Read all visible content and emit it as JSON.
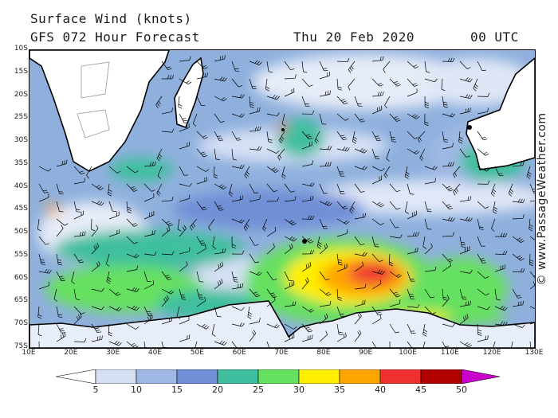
{
  "header": {
    "title": "Surface Wind (knots)",
    "subtitle": "GFS 072 Hour Forecast",
    "date": "Thu 20 Feb 2020",
    "time": "00 UTC"
  },
  "credit": "© www.PassageWeather.com",
  "map": {
    "lat_labels": [
      "10S",
      "15S",
      "20S",
      "25S",
      "30S",
      "35S",
      "40S",
      "45S",
      "50S",
      "55S",
      "60S",
      "65S",
      "70S",
      "75S"
    ],
    "lon_labels": [
      "10E",
      "20E",
      "30E",
      "40E",
      "50E",
      "60E",
      "70E",
      "80E",
      "90E",
      "100E",
      "110E",
      "120E",
      "130E"
    ],
    "lat_range": [
      -10,
      -75
    ],
    "lon_range": [
      10,
      130
    ]
  },
  "legend": {
    "ticks": [
      "5",
      "10",
      "15",
      "20",
      "25",
      "30",
      "35",
      "40",
      "45",
      "50"
    ],
    "colors": [
      "#ffffff",
      "#d6e0f5",
      "#9fb7e4",
      "#6f8fd6",
      "#3fbf9f",
      "#66e060",
      "#ffee00",
      "#ffa500",
      "#ee3030",
      "#b00000",
      "#cc00cc"
    ]
  }
}
